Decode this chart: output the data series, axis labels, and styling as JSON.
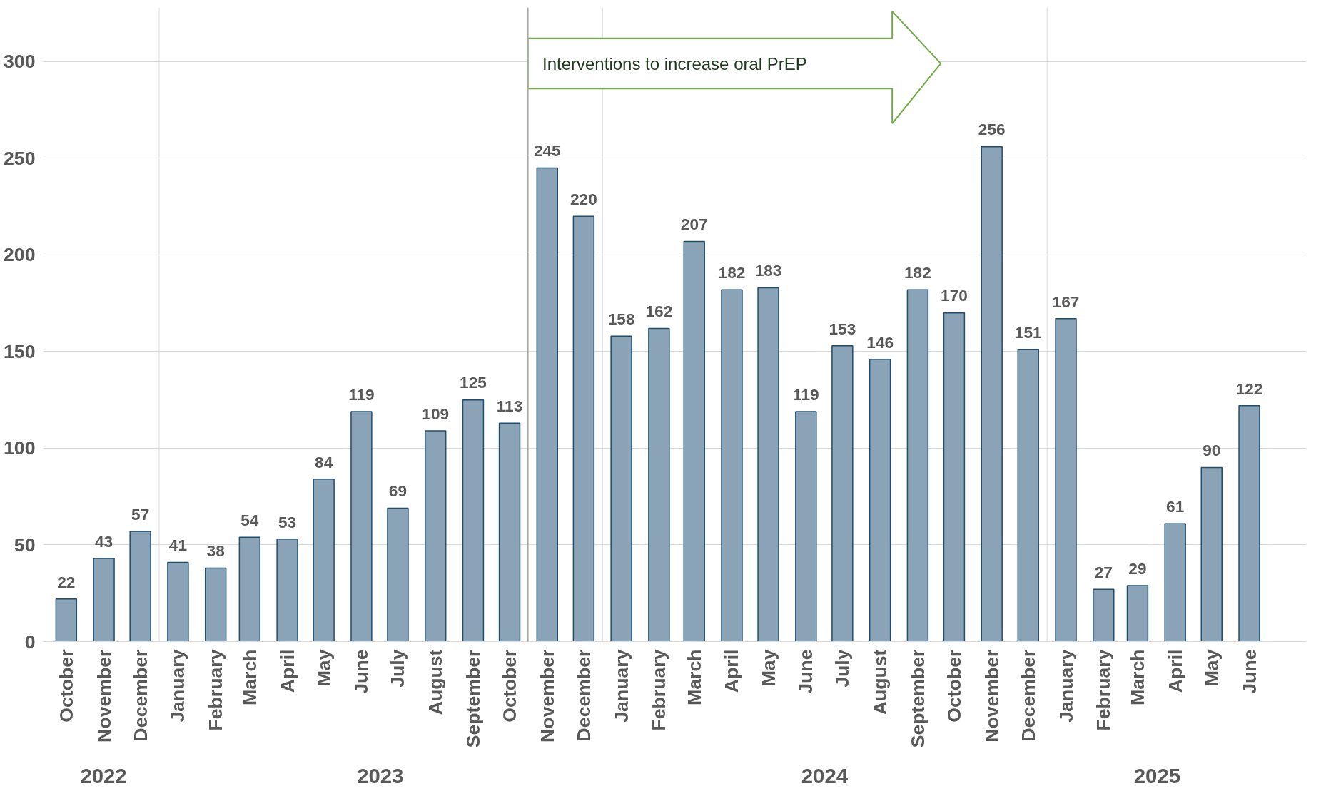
{
  "chart_data": {
    "type": "bar",
    "x": [
      "2022-10",
      "2022-11",
      "2022-12",
      "2023-01",
      "2023-02",
      "2023-03",
      "2023-04",
      "2023-05",
      "2023-06",
      "2023-07",
      "2023-08",
      "2023-09",
      "2023-10",
      "2023-11",
      "2023-12",
      "2024-01",
      "2024-02",
      "2024-03",
      "2024-04",
      "2024-05",
      "2024-06",
      "2024-07",
      "2024-08",
      "2024-09",
      "2024-10",
      "2024-11",
      "2024-12",
      "2025-01",
      "2025-02",
      "2025-03",
      "2025-04",
      "2025-05",
      "2025-06"
    ],
    "values": [
      22,
      43,
      57,
      41,
      38,
      54,
      53,
      84,
      119,
      69,
      109,
      125,
      113,
      245,
      220,
      158,
      162,
      207,
      182,
      183,
      119,
      153,
      146,
      182,
      170,
      256,
      151,
      167,
      27,
      29,
      61,
      90,
      122
    ],
    "color": "#8ba3b6",
    "xlim": [
      "2022-09-12",
      "2025-07-18"
    ],
    "xticks": [
      {
        "value": "2022-10",
        "label": "October"
      },
      {
        "value": "2022-11",
        "label": "November"
      },
      {
        "value": "2022-12",
        "label": "December"
      },
      {
        "value": "2023-01",
        "label": "January"
      },
      {
        "value": "2023-02",
        "label": "February"
      },
      {
        "value": "2023-03",
        "label": "March"
      },
      {
        "value": "2023-04",
        "label": "April"
      },
      {
        "value": "2023-05",
        "label": "May"
      },
      {
        "value": "2023-06",
        "label": "June"
      },
      {
        "value": "2023-07",
        "label": "July"
      },
      {
        "value": "2023-08",
        "label": "August"
      },
      {
        "value": "2023-09",
        "label": "September"
      },
      {
        "value": "2023-10",
        "label": "October"
      },
      {
        "value": "2023-11",
        "label": "November"
      },
      {
        "value": "2023-12",
        "label": "December"
      },
      {
        "value": "2024-01",
        "label": "January"
      },
      {
        "value": "2024-02",
        "label": "February"
      },
      {
        "value": "2024-03",
        "label": "March"
      },
      {
        "value": "2024-04",
        "label": "April"
      },
      {
        "value": "2024-05",
        "label": "May"
      },
      {
        "value": "2024-06",
        "label": "June"
      },
      {
        "value": "2024-07",
        "label": "July"
      },
      {
        "value": "2024-08",
        "label": "August"
      },
      {
        "value": "2024-09",
        "label": "September"
      },
      {
        "value": "2024-10",
        "label": "October"
      },
      {
        "value": "2024-11",
        "label": "November"
      },
      {
        "value": "2024-12",
        "label": "December"
      },
      {
        "value": "2025-01",
        "label": "January"
      },
      {
        "value": "2025-02",
        "label": "February"
      },
      {
        "value": "2025-03",
        "label": "March"
      },
      {
        "value": "2025-04",
        "label": "April"
      },
      {
        "value": "2025-05",
        "label": "May"
      },
      {
        "value": "2025-06",
        "label": "June"
      }
    ],
    "ylim": [
      0,
      328
    ],
    "yticks": [
      0,
      50,
      100,
      150,
      200,
      250,
      300
    ],
    "grid": "y",
    "data_labels": true,
    "ref_lines": [
      {
        "axis": "x",
        "value": "2023-10-16",
        "label": "Interventions to increase oral PrEP",
        "color": "#a6a6a6"
      }
    ],
    "annotations": [
      "2022",
      "2023",
      "2024",
      "2025"
    ]
  }
}
